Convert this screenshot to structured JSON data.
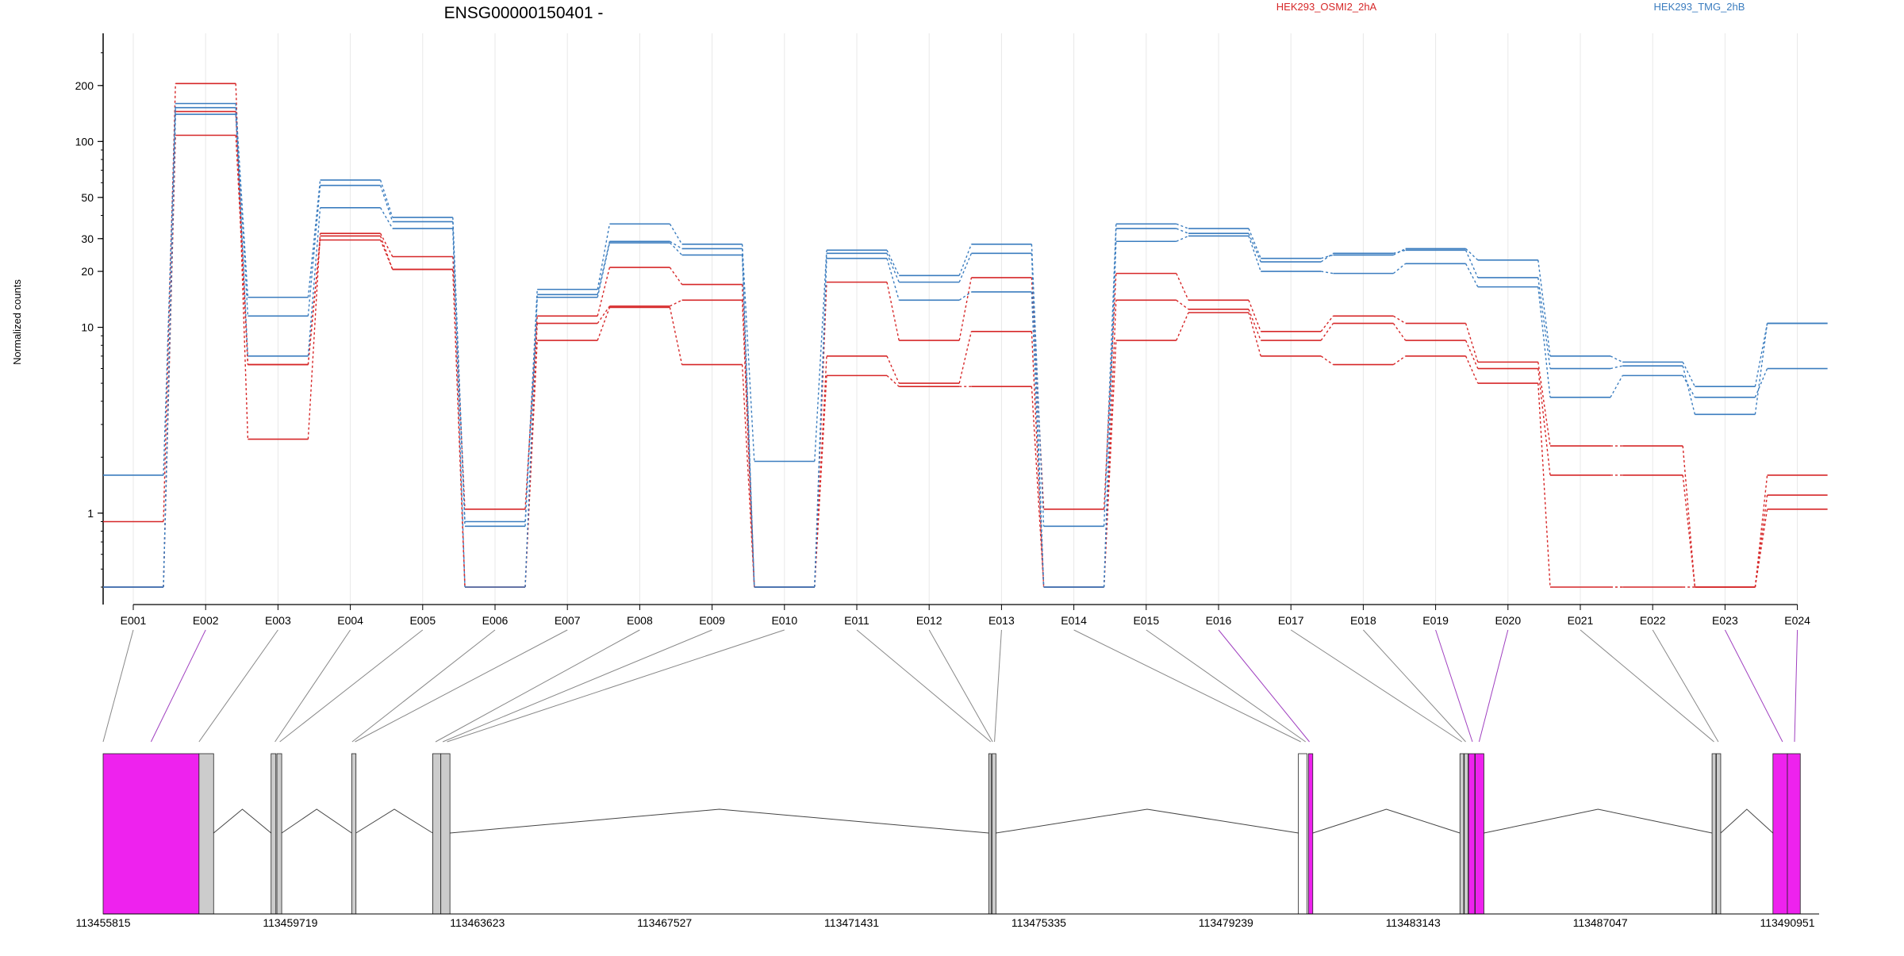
{
  "title": "ENSG00000150401 -",
  "ylabel": "Normalized counts",
  "legend": [
    {
      "label": "HEK293_OSMI2_2hA",
      "color": "#d62728"
    },
    {
      "label": "HEK293_TMG_2hB",
      "color": "#3b7dbf"
    }
  ],
  "colors": {
    "osmi": "#d62728",
    "tmg": "#3b7dbf",
    "exon_highlight": "#ee22ee",
    "exon_plain": "#cccccc",
    "grid": "#e8e8e8"
  },
  "chart_data": {
    "type": "line",
    "title": "ENSG00000150401 -",
    "ylabel": "Normalized counts",
    "yscale": "log",
    "yticks": [
      1,
      10,
      20,
      30,
      50,
      100,
      200
    ],
    "ylim": [
      0.4,
      320
    ],
    "categories": [
      "E001",
      "E002",
      "E003",
      "E004",
      "E005",
      "E006",
      "E007",
      "E008",
      "E009",
      "E010",
      "E011",
      "E012",
      "E013",
      "E014",
      "E015",
      "E016",
      "E017",
      "E018",
      "E019",
      "E020",
      "E021",
      "E022",
      "E023",
      "E024"
    ],
    "highlighted_exons": [
      "E002",
      "E016",
      "E019",
      "E020",
      "E023",
      "E024"
    ],
    "series": [
      {
        "name": "HEK293_OSMI2_2hA",
        "group": "osmi",
        "values": [
          0.9,
          205,
          2.5,
          32,
          24,
          1.05,
          11.5,
          21,
          17,
          0.4,
          17.5,
          8.5,
          18.5,
          1.05,
          19.5,
          14,
          9.5,
          11.5,
          10.5,
          6.5,
          2.3,
          2.3,
          0.4,
          1.6
        ]
      },
      {
        "name": "HEK293_OSMI2_2hA",
        "group": "osmi",
        "values": [
          0.4,
          145,
          6.3,
          31,
          20.5,
          0.4,
          10.5,
          13,
          14,
          0.4,
          7,
          5,
          9.5,
          0.4,
          14,
          12.5,
          8.5,
          10.5,
          8.5,
          6,
          1.6,
          1.6,
          0.4,
          1.25
        ]
      },
      {
        "name": "HEK293_OSMI2_2hA",
        "group": "osmi",
        "values": [
          0.4,
          108,
          6.3,
          29.5,
          20.5,
          0.4,
          8.5,
          12.8,
          6.3,
          0.4,
          5.5,
          4.8,
          4.8,
          0.4,
          8.5,
          12,
          7,
          6.3,
          7,
          5,
          0.4,
          0.4,
          0.4,
          1.05
        ]
      },
      {
        "name": "HEK293_TMG_2hB",
        "group": "tmg",
        "values": [
          1.6,
          160,
          14.5,
          62,
          39,
          0.9,
          16,
          36,
          28,
          1.9,
          26,
          19,
          28,
          0.85,
          36,
          34,
          23.5,
          24.5,
          26.5,
          23,
          7,
          6.5,
          4.8,
          10.5
        ]
      },
      {
        "name": "HEK293_TMG_2hB",
        "group": "tmg",
        "values": [
          0.4,
          152,
          11.5,
          58,
          37,
          0.85,
          15,
          29,
          26.5,
          0.4,
          25,
          17.5,
          25,
          0.4,
          34,
          32,
          22.5,
          25,
          26,
          18.5,
          6,
          6.2,
          3.4,
          10.5
        ]
      },
      {
        "name": "HEK293_TMG_2hB",
        "group": "tmg",
        "values": [
          0.4,
          140,
          7,
          44,
          34,
          0.4,
          14.5,
          28.5,
          24.5,
          0.4,
          23.5,
          14,
          15.5,
          0.4,
          29,
          31,
          20,
          19.5,
          22,
          16.5,
          4.2,
          5.5,
          4.2,
          6
        ]
      }
    ],
    "genome": {
      "axis_ticks": [
        "113455815",
        "113459719",
        "113463623",
        "113467527",
        "113471431",
        "113475335",
        "113479239",
        "113483143",
        "113487047",
        "113490951"
      ],
      "range": [
        113455815,
        113490951
      ],
      "exon_blocks": [
        {
          "start": 113455815,
          "end": 113457815,
          "color": "magenta"
        },
        {
          "start": 113457815,
          "end": 113458120,
          "color": "gray"
        },
        {
          "start": 113459319,
          "end": 113459419,
          "color": "gray"
        },
        {
          "start": 113459440,
          "end": 113459540,
          "color": "gray"
        },
        {
          "start": 113461000,
          "end": 113461090,
          "color": "gray"
        },
        {
          "start": 113462690,
          "end": 113462860,
          "color": "gray"
        },
        {
          "start": 113462860,
          "end": 113463050,
          "color": "gray"
        },
        {
          "start": 113474290,
          "end": 113474340,
          "color": "gray"
        },
        {
          "start": 113474360,
          "end": 113474440,
          "color": "gray"
        },
        {
          "start": 113480750,
          "end": 113480930,
          "color": "white"
        },
        {
          "start": 113480960,
          "end": 113481050,
          "color": "magenta"
        },
        {
          "start": 113484120,
          "end": 113484200,
          "color": "gray"
        },
        {
          "start": 113484210,
          "end": 113484290,
          "color": "gray"
        },
        {
          "start": 113484300,
          "end": 113484430,
          "color": "magenta"
        },
        {
          "start": 113484440,
          "end": 113484620,
          "color": "magenta"
        },
        {
          "start": 113489380,
          "end": 113489460,
          "color": "gray"
        },
        {
          "start": 113489470,
          "end": 113489560,
          "color": "gray"
        },
        {
          "start": 113490650,
          "end": 113490951,
          "color": "magenta"
        },
        {
          "start": 113490951,
          "end": 113491220,
          "color": "magenta"
        }
      ],
      "introns": [
        {
          "from": 113458120,
          "to": 113459319
        },
        {
          "from": 113459540,
          "to": 113461000
        },
        {
          "from": 113461090,
          "to": 113462690
        },
        {
          "from": 113463050,
          "to": 113474290
        },
        {
          "from": 113474440,
          "to": 113480750
        },
        {
          "from": 113481050,
          "to": 113484120
        },
        {
          "from": 113484620,
          "to": 113489380
        },
        {
          "from": 113489560,
          "to": 113490650
        }
      ],
      "exon_links": [
        113455815,
        113456815,
        113457815,
        113459400,
        113459500,
        113461010,
        113461070,
        113462750,
        113462900,
        113462990,
        113474330,
        113474370,
        113474410,
        113480800,
        113480900,
        113480980,
        113484160,
        113484240,
        113484380,
        113484520,
        113489420,
        113489510,
        113490850,
        113491100
      ]
    }
  }
}
